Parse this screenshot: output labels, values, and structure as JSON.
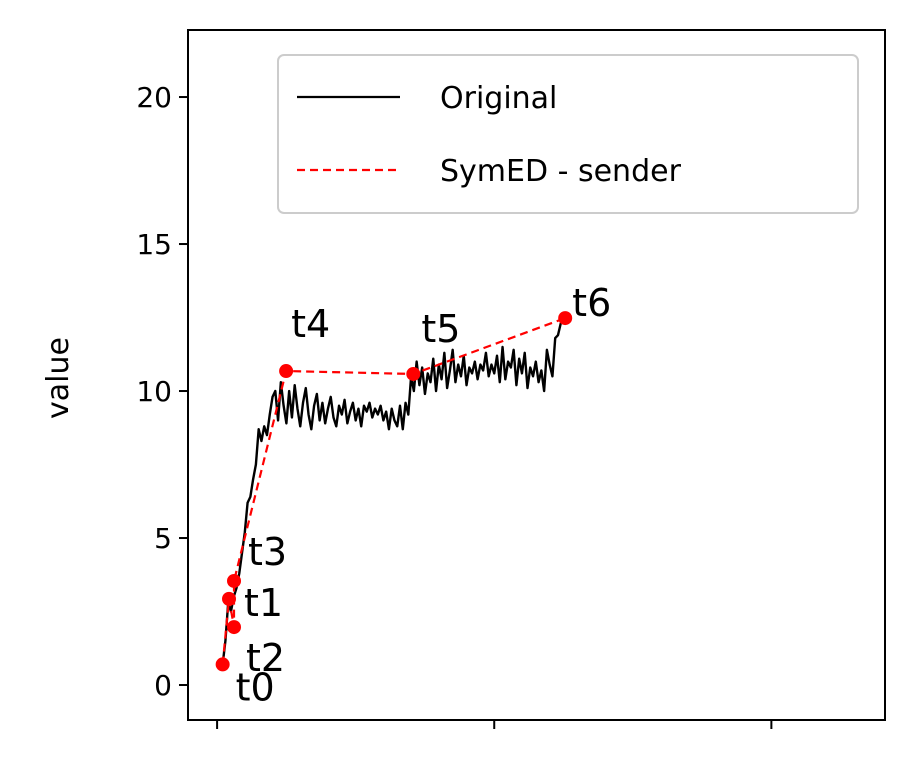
{
  "chart_data": {
    "type": "line",
    "ylabel": "value",
    "xlim": [
      -10.5,
      241
    ],
    "ylim": [
      -1.19,
      22.28
    ],
    "xticks": [
      0,
      100,
      200
    ],
    "yticks": [
      0,
      5,
      10,
      15,
      20
    ],
    "legend": "upper right",
    "series": [
      {
        "name": "Original",
        "color": "#000000",
        "style": "solid",
        "x": [
          2,
          3,
          4,
          5,
          6,
          7,
          8,
          9,
          10,
          11,
          12,
          13,
          14,
          15,
          16,
          17,
          18,
          19,
          20,
          21,
          22,
          23,
          24,
          25,
          26,
          27,
          28,
          29,
          30,
          31,
          32,
          33,
          34,
          35,
          36,
          37,
          38,
          39,
          40,
          41,
          42,
          43,
          44,
          45,
          46,
          47,
          48,
          49,
          50,
          51,
          52,
          53,
          54,
          55,
          56,
          57,
          58,
          59,
          60,
          61,
          62,
          63,
          64,
          65,
          66,
          67,
          68,
          69,
          70,
          71,
          72,
          73,
          74,
          75,
          76,
          77,
          78,
          79,
          80,
          81,
          82,
          83,
          84,
          85,
          86,
          87,
          88,
          89,
          90,
          91,
          92,
          93,
          94,
          95,
          96,
          97,
          98,
          99,
          100,
          101,
          102,
          103,
          104,
          105,
          106,
          107,
          108,
          109,
          110,
          111,
          112,
          113,
          114,
          115,
          116,
          117,
          118,
          119,
          120,
          121,
          122,
          123,
          124,
          125
        ],
        "values": [
          0.7,
          1.5,
          2.8,
          2.5,
          3.0,
          3.3,
          3.8,
          4.5,
          5.2,
          6.2,
          6.4,
          7.0,
          7.5,
          8.7,
          8.3,
          8.8,
          8.5,
          9.2,
          9.8,
          10.0,
          9.0,
          10.3,
          9.5,
          8.9,
          10.0,
          9.1,
          10.2,
          9.4,
          8.8,
          9.6,
          10.1,
          9.2,
          8.7,
          9.5,
          9.9,
          9.0,
          9.6,
          8.9,
          9.4,
          9.8,
          9.1,
          8.8,
          9.5,
          9.2,
          9.7,
          8.9,
          9.3,
          9.6,
          9.0,
          9.4,
          8.8,
          9.5,
          9.3,
          9.6,
          9.1,
          9.4,
          9.2,
          9.5,
          9.0,
          9.3,
          8.7,
          9.4,
          9.0,
          8.8,
          9.5,
          8.7,
          9.6,
          9.2,
          10.5,
          10.0,
          11.0,
          10.2,
          10.8,
          9.9,
          10.6,
          10.3,
          11.1,
          10.0,
          10.9,
          10.4,
          11.3,
          10.1,
          10.7,
          11.4,
          10.3,
          10.9,
          10.5,
          11.2,
          10.2,
          10.8,
          10.6,
          11.0,
          10.4,
          10.9,
          10.7,
          11.3,
          10.5,
          10.9,
          10.6,
          11.2,
          10.3,
          11.5,
          10.4,
          11.0,
          10.8,
          11.4,
          10.2,
          11.1,
          10.6,
          11.3,
          10.1,
          10.8,
          10.5,
          11.0,
          10.3,
          10.7,
          10.0,
          11.4,
          10.9,
          10.5,
          11.8,
          11.9,
          12.3,
          12.5
        ]
      },
      {
        "name": "SymED - sender",
        "color": "#ff0000",
        "style": "dashed",
        "markers": true,
        "x": [
          2,
          4.3,
          6.1,
          6.1,
          24.9,
          70.8,
          125.6
        ],
        "values": [
          0.7,
          2.93,
          1.97,
          3.54,
          10.68,
          10.58,
          12.48
        ],
        "point_labels": [
          "t0",
          "t1",
          "t2",
          "t3",
          "t4",
          "t5",
          "t6"
        ]
      }
    ]
  }
}
